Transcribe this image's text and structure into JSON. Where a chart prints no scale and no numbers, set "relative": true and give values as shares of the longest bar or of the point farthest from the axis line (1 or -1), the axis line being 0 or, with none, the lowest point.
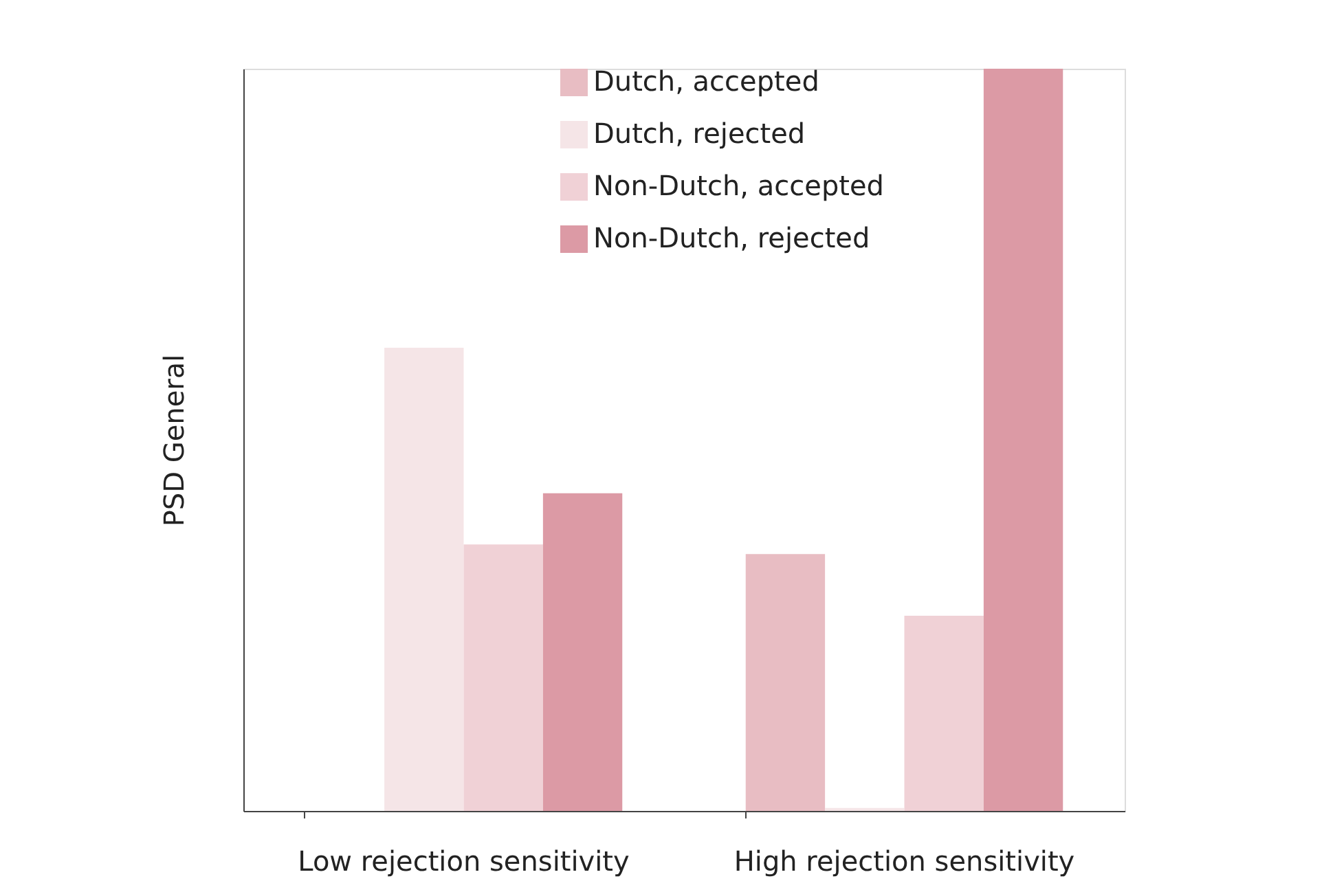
{
  "chart_data": {
    "type": "bar",
    "relative": true,
    "ylabel": "PSD General",
    "categories": [
      "Low rejection sensitivity",
      "High rejection sensitivity"
    ],
    "series": [
      {
        "name": "Dutch, accepted",
        "color": "#e8bdc3",
        "values": [
          0,
          0.346
        ]
      },
      {
        "name": "Dutch, rejected",
        "color": "#f5e5e7",
        "values": [
          0.624,
          0.004
        ]
      },
      {
        "name": "Non-Dutch, accepted",
        "color": "#f0d1d6",
        "values": [
          0.359,
          0.263
        ]
      },
      {
        "name": "Non-Dutch, rejected",
        "color": "#dc9aa5",
        "values": [
          0.428,
          1
        ]
      }
    ],
    "legend": "top",
    "grid": false
  }
}
